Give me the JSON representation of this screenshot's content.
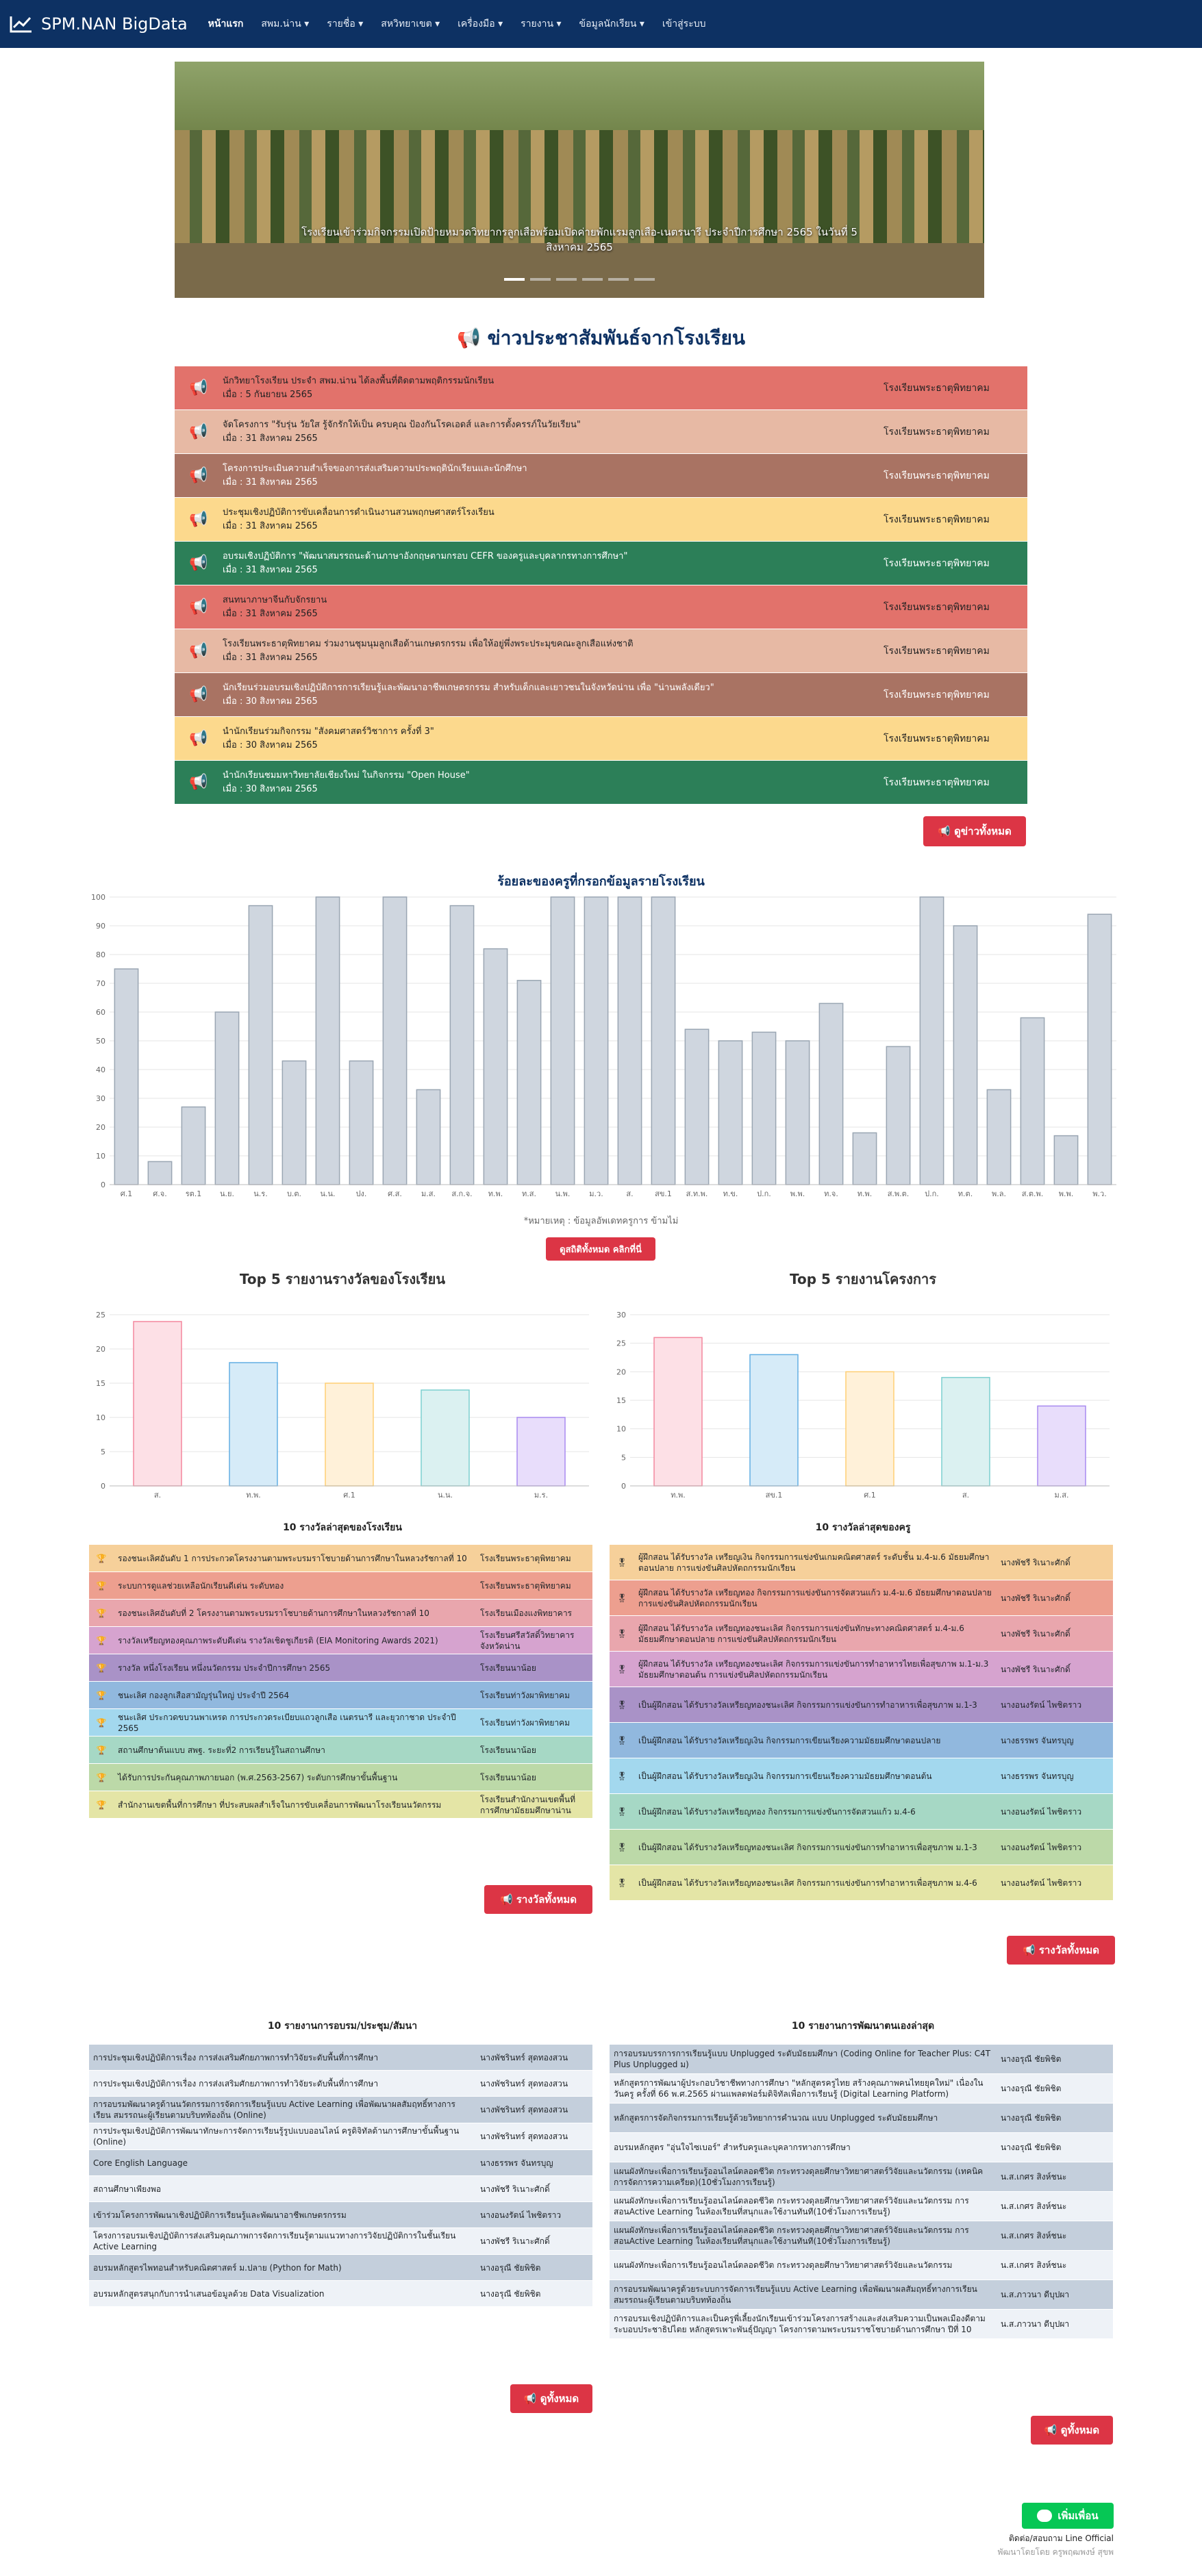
{
  "nav": {
    "brand": "SPM.NAN BigData",
    "items": [
      "หน้าแรก",
      "สพม.น่าน ▾",
      "รายชื่อ ▾",
      "สหวิทยาเขต ▾",
      "เครื่องมือ ▾",
      "รายงาน ▾",
      "ข้อมูลนักเรียน ▾",
      "เข้าสู่ระบบ"
    ]
  },
  "carousel": {
    "caption": "โรงเรียนเข้าร่วมกิจกรรมเปิดป้ายหมวดวิทยากรลูกเสือพร้อมเปิดค่ายพักแรมลูกเสือ-เนตรนารี ประจำปีการศึกษา 2565 ในวันที่ 5 สิงหาคม 2565"
  },
  "news": {
    "title": "ข่าวประชาสัมพันธ์จากโรงเรียน",
    "button": "ดูข่าวทั้งหมด",
    "rows": [
      {
        "title": "นักวิทยาโรงเรียน ประจำ สพม.น่าน ได้ลงพื้นที่ติดตามพฤติกรรมนักเรียน",
        "date": "เมื่อ : 5 กันยายน 2565",
        "school": "โรงเรียนพระธาตุพิทยาคม",
        "color": "#e2726b"
      },
      {
        "title": "จัดโครงการ \"รับรุ่น วัยใส รู้จักรักให้เป็น ครบคุณ ป้องกันโรคเอดส์ และการตั้งครรภ์ในวัยเรียน\"",
        "date": "เมื่อ : 31 สิงหาคม 2565",
        "school": "โรงเรียนพระธาตุพิทยาคม",
        "color": "#e7b9a4"
      },
      {
        "title": "โครงการประเมินความสำเร็จของการส่งเสริมความประพฤตินักเรียนและนักศึกษา",
        "date": "เมื่อ : 31 สิงหาคม 2565",
        "school": "โรงเรียนพระธาตุพิทยาคม",
        "color": "#a97363"
      },
      {
        "title": "ประชุมเชิงปฏิบัติการขับเคลื่อนการดำเนินงานสวนพฤกษศาสตร์โรงเรียน",
        "date": "เมื่อ : 31 สิงหาคม 2565",
        "school": "โรงเรียนพระธาตุพิทยาคม",
        "color": "#fcd98d"
      },
      {
        "title": "อบรมเชิงปฏิบัติการ \"พัฒนาสมรรถนะด้านภาษาอังกฤษตามกรอบ CEFR ของครูและบุคลากรทางการศึกษา\"",
        "date": "เมื่อ : 31 สิงหาคม 2565",
        "school": "โรงเรียนพระธาตุพิทยาคม",
        "color": "#2c7f58"
      },
      {
        "title": "สนทนาภาษาจีนกับจักรยาน",
        "date": "เมื่อ : 31 สิงหาคม 2565",
        "school": "โรงเรียนพระธาตุพิทยาคม",
        "color": "#e2726b"
      },
      {
        "title": "โรงเรียนพระธาตุพิทยาคม ร่วมงานชุมนุมลูกเสือด้านเกษตรกรรม เพื่อให้อยู่พึ่งพระประมุขคณะลูกเสือแห่งชาติ",
        "date": "เมื่อ : 31 สิงหาคม 2565",
        "school": "โรงเรียนพระธาตุพิทยาคม",
        "color": "#e7b9a4"
      },
      {
        "title": "นักเรียนร่วมอบรมเชิงปฏิบัติการการเรียนรู้และพัฒนาอาชีพเกษตรกรรม สำหรับเด็กและเยาวชนในจังหวัดน่าน เพื่อ \"น่านพลังเดียว\"",
        "date": "เมื่อ : 30 สิงหาคม 2565",
        "school": "โรงเรียนพระธาตุพิทยาคม",
        "color": "#a97363"
      },
      {
        "title": "นำนักเรียนร่วมกิจกรรม \"สังคมศาสตร์วิชาการ ครั้งที่ 3\"",
        "date": "เมื่อ : 30 สิงหาคม 2565",
        "school": "โรงเรียนพระธาตุพิทยาคม",
        "color": "#fcd98d"
      },
      {
        "title": "นำนักเรียนชมมหาวิทยาลัยเชียงใหม่ ในกิจกรรม \"Open House\"",
        "date": "เมื่อ : 30 สิงหาคม 2565",
        "school": "โรงเรียนพระธาตุพิทยาคม",
        "color": "#2c7f58"
      }
    ]
  },
  "teacher_chart": {
    "title": "ร้อยละของครูที่กรอกข้อมูลรายโรงเรียน",
    "note": "*หมายเหตุ : ข้อมูลอัพเดทครูการ ข้ามไม่",
    "button": "ดูสถิติทั้งหมด คลิกที่นี่"
  },
  "chart_data": [
    {
      "type": "bar",
      "title": "ร้อยละของครูที่กรอกข้อมูลรายโรงเรียน",
      "categories": [
        "ศ.1",
        "ศ.จ.",
        "รต.1",
        "น.ย.",
        "น.ร.",
        "บ.ต.",
        "น.น.",
        "ปง.",
        "ศ.ส.",
        "ม.ส.",
        "ส.ก.จ.",
        "ท.พ.",
        "ท.ส.",
        "น.พ.",
        "ม.ว.",
        "ส.",
        "สข.1",
        "ส.ท.พ.",
        "ท.ข.",
        "ป.ก.",
        "พ.พ.",
        "ท.จ.",
        "ท.พ.",
        "ส.พ.ต.",
        "ป.ก.",
        "ท.ต.",
        "พ.ล.",
        "ส.ต.พ.",
        "พ.พ.",
        "พ.ว."
      ],
      "values": [
        75,
        8,
        27,
        60,
        97,
        43,
        100,
        43,
        100,
        33,
        97,
        82,
        71,
        100,
        100,
        100,
        100,
        54,
        50,
        53,
        50,
        63,
        18,
        48,
        100,
        90,
        33,
        58,
        17,
        94
      ],
      "ylim": [
        0,
        100
      ]
    },
    {
      "type": "bar",
      "title": "Top 5 รายงานรางวัลของโรงเรียน",
      "categories": [
        "ส.",
        "ท.พ.",
        "ศ.1",
        "น.น.",
        "ม.ร."
      ],
      "values": [
        24,
        18,
        15,
        14,
        10
      ],
      "ylim": [
        0,
        25
      ]
    },
    {
      "type": "bar",
      "title": "Top 5 รายงานโครงการ",
      "categories": [
        "ท.พ.",
        "สข.1",
        "ศ.1",
        "ส.",
        "ม.ส."
      ],
      "values": [
        26,
        23,
        20,
        19,
        14
      ],
      "ylim": [
        0,
        30
      ]
    }
  ],
  "awards_school": {
    "title": "10 รางวัลล่าสุดของโรงเรียน",
    "button": "รางวัลทั้งหมด",
    "rows": [
      {
        "text": "รองชนะเลิศอันดับ 1 การประกวดโครงงานตามพระบรมราโชบายด้านการศึกษาในหลวงรัชกาลที่ 10",
        "school": "โรงเรียนพระธาตุพิทยาคม",
        "color": "#f6d09a"
      },
      {
        "text": "ระบบการดูแลช่วยเหลือนักเรียนดีเด่น ระดับทอง",
        "school": "โรงเรียนพระธาตุพิทยาคม",
        "color": "#ed9f8f"
      },
      {
        "text": "รองชนะเลิศอันดับที่ 2 โครงงานตามพระบรมราโชบายด้านการศึกษาในหลวงรัชกาลที่ 10",
        "school": "โรงเรียนเมืองแงพิทยาคาร",
        "color": "#e9a6ad"
      },
      {
        "text": "รางวัลเหรียญทองคุณภาพระดับดีเด่น รางวัลเชิดชูเกียรติ (EIA Monitoring Awards 2021)",
        "school": "โรงเรียนศรีสวัสดิ์วิทยาคารจังหวัดน่าน",
        "color": "#d6a3cf"
      },
      {
        "text": "รางวัล หนึ่งโรงเรียน หนึ่งนวัตกรรม ประจำปีการศึกษา 2565",
        "school": "โรงเรียนนาน้อย",
        "color": "#a992c7"
      },
      {
        "text": "ชนะเลิศ กองลูกเสือสามัญรุ่นใหญ่ ประจำปี 2564",
        "school": "โรงเรียนท่าวังผาพิทยาคม",
        "color": "#91b8de"
      },
      {
        "text": "ชนะเลิศ ประกวดขบวนพาเหรด การประกวดระเบียบแถวลูกเสือ เนตรนารี และยุวกาชาด ประจำปี 2565",
        "school": "โรงเรียนท่าวังผาพิทยาคม",
        "color": "#a3d8ee"
      },
      {
        "text": "สถานศึกษาต้นแบบ สพฐ. ระยะที่2 การเรียนรู้ในสถานศึกษา",
        "school": "โรงเรียนนาน้อย",
        "color": "#a6d8c5"
      },
      {
        "text": "ได้รับการประกันคุณภาพภายนอก (พ.ศ.2563-2567) ระดับการศึกษาขั้นพื้นฐาน",
        "school": "โรงเรียนนาน้อย",
        "color": "#bcd9a8"
      },
      {
        "text": "สำนักงานเขตพื้นที่การศึกษา ที่ประสบผลสำเร็จในการขับเคลื่อนการพัฒนาโรงเรียนนวัตกรรม",
        "school": "โรงเรียนสำนักงานเขตพื้นที่การศึกษามัธยมศึกษาน่าน",
        "color": "#e4e5a6"
      }
    ]
  },
  "awards_teacher": {
    "title": "10 รางวัลล่าสุดของครู",
    "button": "รางวัลทั้งหมด",
    "rows": [
      {
        "text": "ผู้ฝึกสอน ได้รับรางวัล เหรียญเงิน กิจกรรมการแข่งขันเกมคณิตศาสตร์ ระดับชั้น ม.4-ม.6 มัธยมศึกษาตอนปลาย การแข่งขันศิลปหัตถกรรมนักเรียน",
        "name": "นางพัชรี ริเนาะศักดิ์",
        "color": "#f6d09a"
      },
      {
        "text": "ผู้ฝึกสอน ได้รับรางวัล เหรียญทอง กิจกรรมการแข่งขันการจัดสวนแก้ว ม.4-ม.6 มัธยมศึกษาตอนปลาย การแข่งขันศิลปหัตถกรรมนักเรียน",
        "name": "นางพัชรี ริเนาะศักดิ์",
        "color": "#ed9f8f"
      },
      {
        "text": "ผู้ฝึกสอน ได้รับรางวัล เหรียญทองชนะเลิศ กิจกรรมการแข่งขันทักษะทางคณิตศาสตร์ ม.4-ม.6 มัธยมศึกษาตอนปลาย การแข่งขันศิลปหัตถกรรมนักเรียน",
        "name": "นางพัชรี ริเนาะศักดิ์",
        "color": "#e9a6ad"
      },
      {
        "text": "ผู้ฝึกสอน ได้รับรางวัล เหรียญทองชนะเลิศ กิจกรรมการแข่งขันการทำอาหารไทยเพื่อสุขภาพ ม.1-ม.3 มัธยมศึกษาตอนต้น การแข่งขันศิลปหัตถกรรมนักเรียน",
        "name": "นางพัชรี ริเนาะศักดิ์",
        "color": "#d6a3cf"
      },
      {
        "text": "เป็นผู้ฝึกสอน ได้รับรางวัลเหรียญทองชนะเลิศ กิจกรรมการแข่งขันการทำอาหารเพื่อสุขภาพ ม.1-3",
        "name": "นางอนงรัตน์ ไพชิตราว",
        "color": "#a992c7"
      },
      {
        "text": "เป็นผู้ฝึกสอน ได้รับรางวัลเหรียญเงิน กิจกรรมการเขียนเรียงความมัธยมศึกษาตอนปลาย",
        "name": "นางธรรพร จันทรบุญ",
        "color": "#91b8de"
      },
      {
        "text": "เป็นผู้ฝึกสอน ได้รับรางวัลเหรียญเงิน กิจกรรมการเขียนเรียงความมัธยมศึกษาตอนต้น",
        "name": "นางธรรพร จันทรบุญ",
        "color": "#a3d8ee"
      },
      {
        "text": "เป็นผู้ฝึกสอน ได้รับรางวัลเหรียญทอง กิจกรรมการแข่งขันการจัดสวนแก้ว ม.4-6",
        "name": "นางอนงรัตน์ ไพชิตราว",
        "color": "#a6d8c5"
      },
      {
        "text": "เป็นผู้ฝึกสอน ได้รับรางวัลเหรียญทองชนะเลิศ กิจกรรมการแข่งขันการทำอาหารเพื่อสุขภาพ ม.1-3",
        "name": "นางอนงรัตน์ ไพชิตราว",
        "color": "#bcd9a8"
      },
      {
        "text": "เป็นผู้ฝึกสอน ได้รับรางวัลเหรียญทองชนะเลิศ กิจกรรมการแข่งขันการทำอาหารเพื่อสุขภาพ ม.4-6",
        "name": "นางอนงรัตน์ ไพชิตราว",
        "color": "#e4e5a6"
      }
    ]
  },
  "trainings": {
    "title": "10 รายงานการอบรม/ประชุม/สัมนา",
    "button": "ดูทั้งหมด",
    "rows": [
      {
        "text": "การประชุมเชิงปฏิบัติการเรื่อง การส่งเสริมศักยภาพการทำวิจัยระดับพื้นที่การศึกษา",
        "name": "นางพัชรินทร์ สุดทองสวน"
      },
      {
        "text": "การประชุมเชิงปฏิบัติการเรื่อง การส่งเสริมศักยภาพการทำวิจัยระดับพื้นที่การศึกษา",
        "name": "นางพัชรินทร์ สุดทองสวน"
      },
      {
        "text": "การอบรมพัฒนาครูด้านนวัตกรรมการจัดการเรียนรู้แบบ Active Learning เพื่อพัฒนาผลสัมฤทธิ์ทางการเรียน สมรรถนะผู้เรียนตามบริบทท้องถิ่น (Online)",
        "name": "นางพัชรินทร์ สุดทองสวน"
      },
      {
        "text": "การประชุมเชิงปฏิบัติการพัฒนาทักษะการจัดการเรียนรู้รูปแบบออนไลน์ ครูดิจิทัลด้านการศึกษาขั้นพื้นฐาน (Online)",
        "name": "นางพัชรินทร์ สุดทองสวน"
      },
      {
        "text": "Core English Language",
        "name": "นางธรรพร จันทรบุญ"
      },
      {
        "text": "สถานศึกษาเพียงพอ",
        "name": "นางพัชรี ริเนาะศักดิ์"
      },
      {
        "text": "เข้าร่วมโครงการพัฒนาเชิงปฏิบัติการเรียนรู้และพัฒนาอาชีพเกษตรกรรม",
        "name": "นางอนงรัตน์ ไพชิตราว"
      },
      {
        "text": "โครงการอบรมเชิงปฏิบัติการส่งเสริมคุณภาพการจัดการเรียนรู้ตามแนวทางการวิจัยปฏิบัติการในชั้นเรียน Active Learning",
        "name": "นางพัชรี ริเนาะศักดิ์"
      },
      {
        "text": "อบรมหลักสูตรไพทอนสำหรับคณิตศาสตร์ ม.ปลาย (Python for Math)",
        "name": "นางอรุณี ชัยพิชิต"
      },
      {
        "text": "อบรมหลักสูตรสนุกกับการนำเสนอข้อมูลด้วย Data Visualization",
        "name": "นางอรุณี ชัยพิชิต"
      }
    ]
  },
  "selfdev": {
    "title": "10 รายงานการพัฒนาตนเองล่าสุด",
    "button": "ดูทั้งหมด",
    "rows": [
      {
        "text": "การอบรมบรรการการเรียนรู้แบบ Unplugged ระดับมัธยมศึกษา (Coding Online for Teacher Plus: C4T Plus Unplugged ม)",
        "name": "นางอรุณี ชัยพิชิต"
      },
      {
        "text": "หลักสูตรการพัฒนาผู้ประกอบวิชาชีพทางการศึกษา \"หลักสูตรครูไทย สร้างคุณภาพคนไทยยุคใหม่\" เนื่องในวันครู ครั้งที่ 66 พ.ศ.2565 ผ่านแพลตฟอร์มดิจิทัลเพื่อการเรียนรู้ (Digital Learning Platform)",
        "name": "นางอรุณี ชัยพิชิต"
      },
      {
        "text": "หลักสูตรการจัดกิจกรรมการเรียนรู้ด้วยวิทยาการคำนวณ แบบ Unplugged ระดับมัธยมศึกษา",
        "name": "นางอรุณี ชัยพิชิต"
      },
      {
        "text": "อบรมหลักสูตร \"อุ่นใจไซเบอร์\" สำหรับครูและบุคลากรทางการศึกษา",
        "name": "นางอรุณี ชัยพิชิต"
      },
      {
        "text": "แผนผังทักษะเพื่อการเรียนรู้ออนไลน์ตลอดชีวิต กระทรวงดุลยศึกษาวิทยาศาสตร์วิจัยและนวัตกรรม (เทคนิคการจัดการความเครียด)(10ชั่วโมงการเรียนรู้)",
        "name": "น.ส.เกศร สิงห์ชนะ"
      },
      {
        "text": "แผนผังทักษะเพื่อการเรียนรู้ออนไลน์ตลอดชีวิต กระทรวงดุลยศึกษาวิทยาศาสตร์วิจัยและนวัตกรรม การสอนActive Learning ในห้องเรียนที่สนุกและใช้งานทันที(10ชั่วโมงการเรียนรู้)",
        "name": "น.ส.เกศร สิงห์ชนะ"
      },
      {
        "text": "แผนผังทักษะเพื่อการเรียนรู้ออนไลน์ตลอดชีวิต กระทรวงดุลยศึกษาวิทยาศาสตร์วิจัยและนวัตกรรม การสอนActive Learning ในห้องเรียนที่สนุกและใช้งานทันที(10ชั่วโมงการเรียนรู้)",
        "name": "น.ส.เกศร สิงห์ชนะ"
      },
      {
        "text": "แผนผังทักษะเพื่อการเรียนรู้ออนไลน์ตลอดชีวิต กระทรวงดุลยศึกษาวิทยาศาสตร์วิจัยและนวัตกรรม",
        "name": "น.ส.เกศร สิงห์ชนะ"
      },
      {
        "text": "การอบรมพัฒนาครูด้วยระบบการจัดการเรียนรู้แบบ Active Learning เพื่อพัฒนาผลสัมฤทธิ์ทางการเรียน สมรรถนะผู้เรียนตามบริบทท้องถิ่น",
        "name": "น.ส.ภาวนา ดีบุปผา"
      },
      {
        "text": "การอบรมเชิงปฏิบัติการและเป็นครูพี่เลี้ยงนักเรียนเข้าร่วมโครงการสร้างและส่งเสริมความเป็นพลเมืองดีตามระบอบประชาธิปไตย หลักสูตรเพาะพันธุ์ปัญญา โครงการตามพระบรมราชโชบายด้านการศึกษา ปีที่ 10",
        "name": "น.ส.ภาวนา ดีบุปผา"
      }
    ]
  },
  "footer": {
    "line_button": "เพิ่มเพื่อน",
    "line_text": "ติดต่อ/สอบถาม Line Official",
    "credit": "พัฒนาโดยโดย ครูพฤฒพงษ์ สุขพ"
  }
}
